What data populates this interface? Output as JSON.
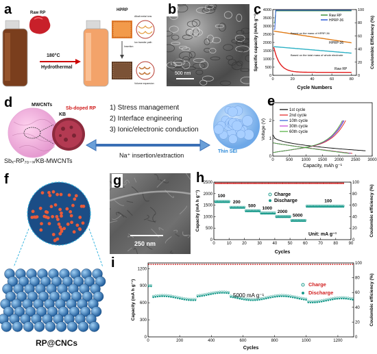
{
  "labels": {
    "a": "a",
    "b": "b",
    "c": "c",
    "d": "d",
    "e": "e",
    "f": "f",
    "g": "g",
    "h": "h",
    "i": "i"
  },
  "panel_a": {
    "raw_rp": "Raw RP",
    "temp": "180°C",
    "process": "Hydrothermal",
    "hprp": "HPRP",
    "alkali_etch": "Alkali metal ions",
    "ion_transfer": "Ion transfer path",
    "insertion": "Insertion",
    "volume_expansion": "Volume expansion"
  },
  "panel_b": {
    "scale": "500 nm"
  },
  "panel_c": {
    "ylabel": "Specific capacity (mAh g⁻¹)",
    "ylabel_right": "Coulombic Efficiency (%)",
    "xlabel": "Cycle Numbers",
    "legend": [
      "Raw RP",
      "HPRP-36"
    ],
    "ann_mass_hprp": "Based on the mass of HPRP-36",
    "ann_hprp": "HPRP-36",
    "ann_total_mass": "Based on the total mass of whole electrode",
    "ann_raw": "Raw RP",
    "yticks": [
      "0",
      "500",
      "1000",
      "1500",
      "2000",
      "2500",
      "3000",
      "3500",
      "4000"
    ],
    "xticks": [
      "0",
      "20",
      "40",
      "60",
      "80"
    ],
    "yticks_right": [
      "0",
      "20",
      "40",
      "60",
      "80",
      "100"
    ]
  },
  "panel_d": {
    "mwcnts": "MWCNTs",
    "kb": "KB",
    "sb_doped": "Sb-doped RP",
    "list1": "1) Stress management",
    "list2": "2) Interface engineering",
    "list3": "3) Ionic/electronic conduction",
    "na_label": "Na⁺ insertion/extraction",
    "thin_sei": "Thin SEI",
    "composite": "Sbₓ-RP₇₀₋ₓ/KB-MWCNTs"
  },
  "panel_e": {
    "ylabel": "Voltage (V)",
    "xlabel": "Capacity, mAh g⁻¹",
    "legend": [
      "1st cycle",
      "2nd cycle",
      "10th cycle",
      "30th cycle",
      "60th cycle"
    ],
    "yticks": [
      "0",
      "1",
      "2",
      "3"
    ],
    "xticks": [
      "0",
      "500",
      "1000",
      "1500",
      "2000",
      "2500",
      "3000"
    ]
  },
  "panel_f": {
    "caption": "RP@CNCs"
  },
  "panel_g": {
    "scale": "250 nm"
  },
  "panel_h": {
    "ylabel": "Capacity (mA h g⁻¹)",
    "ylabel_right": "Coulombic efficiency (%)",
    "xlabel": "Cycles",
    "legend": [
      "Charge",
      "Discharge"
    ],
    "unit": "Unit: mA g⁻¹",
    "rates": [
      "100",
      "200",
      "500",
      "1000",
      "2000",
      "5000",
      "100"
    ],
    "yticks": [
      "0",
      "500",
      "1000",
      "1500",
      "2000",
      "2500"
    ],
    "xticks": [
      "0",
      "10",
      "20",
      "30",
      "40",
      "50",
      "60",
      "70",
      "80",
      "90"
    ],
    "yticks_right": [
      "0",
      "20",
      "40",
      "60",
      "80",
      "100"
    ]
  },
  "panel_i": {
    "ylabel": "Capacity (mA h g⁻¹)",
    "ylabel_right": "Coulombic efficiency (%)",
    "xlabel": "Cycles",
    "legend": [
      "Charge",
      "Discharge"
    ],
    "rate": "5000 mA g⁻¹",
    "yticks": [
      "0",
      "300",
      "600",
      "900",
      "1200"
    ],
    "xticks": [
      "0",
      "200",
      "400",
      "600",
      "800",
      "1000",
      "1200"
    ],
    "yticks_right": [
      "0",
      "20",
      "40",
      "60",
      "80",
      "100"
    ]
  }
}
